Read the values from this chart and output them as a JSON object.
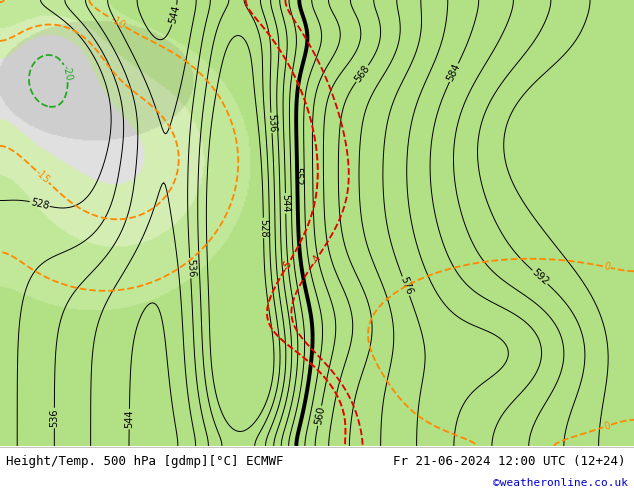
{
  "title_left": "Height/Temp. 500 hPa [gdmp][°C] ECMWF",
  "title_right": "Fr 21-06-2024 12:00 UTC (12+24)",
  "credit": "©weatheronline.co.uk",
  "credit_color": "#0000cc",
  "title_fontsize": 9,
  "label_fontsize": 7,
  "figsize": [
    6.34,
    4.9
  ],
  "dpi": 100
}
